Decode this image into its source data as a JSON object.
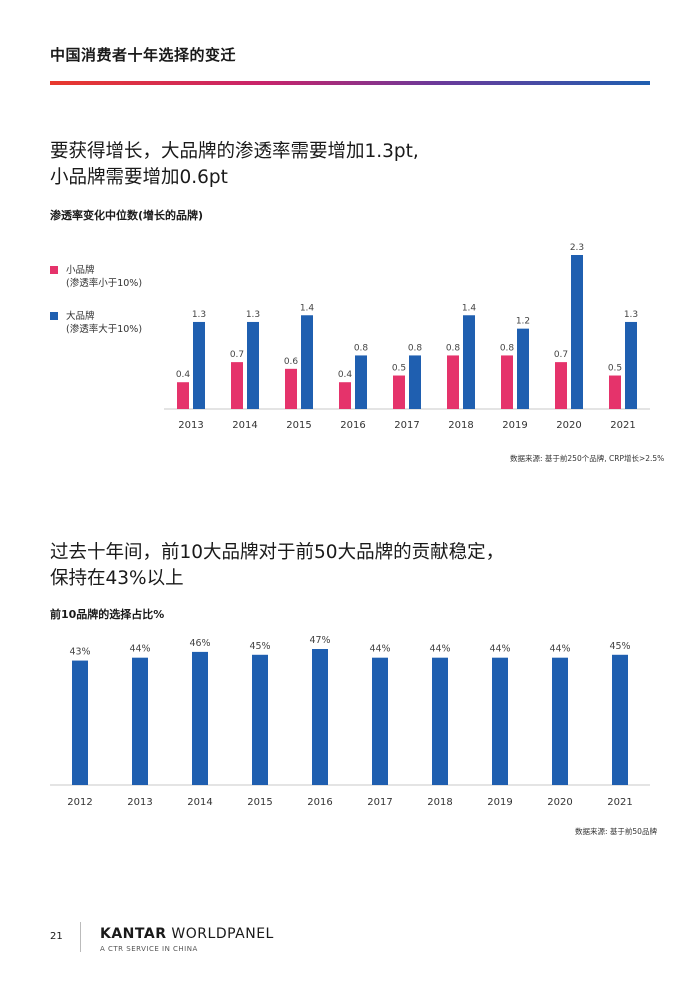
{
  "header": {
    "title": "中国消费者十年选择的变迁"
  },
  "section1": {
    "headline_line1": "要获得增长，大品牌的渗透率需要增加1.3pt,",
    "headline_line2": "小品牌需要增加0.6pt",
    "chart_title": "渗透率变化中位数(增长的品牌)",
    "legend": [
      {
        "label": "小品牌",
        "sub": "(渗透率小于10%)",
        "color": "#e5336b"
      },
      {
        "label": "大品牌",
        "sub": "(渗透率大于10%)",
        "color": "#1f5fb0"
      }
    ],
    "source": "数据来源: 基于前250个品牌, CRP增长>2.5%"
  },
  "section2": {
    "headline_line1": "过去十年间，前10大品牌对于前50大品牌的贡献稳定，",
    "headline_line2": "保持在43%以上",
    "chart_title": "前10品牌的选择占比%",
    "source": "数据来源: 基于前50品牌"
  },
  "footer": {
    "page_number": "21",
    "brand_bold": "KANTAR",
    "brand_light": " WORLDPANEL",
    "tagline": "A CTR SERVICE IN CHINA"
  },
  "chart_data": [
    {
      "type": "bar",
      "title": "渗透率变化中位数(增长的品牌)",
      "categories": [
        "2013",
        "2014",
        "2015",
        "2016",
        "2017",
        "2018",
        "2019",
        "2020",
        "2021"
      ],
      "series": [
        {
          "name": "小品牌",
          "color": "#e5336b",
          "values": [
            0.4,
            0.7,
            0.6,
            0.4,
            0.5,
            0.8,
            0.8,
            0.7,
            0.5
          ]
        },
        {
          "name": "大品牌",
          "color": "#1f5fb0",
          "values": [
            1.3,
            1.3,
            1.4,
            0.8,
            0.8,
            1.4,
            1.2,
            2.3,
            1.3
          ]
        }
      ],
      "ylim": [
        0,
        2.3
      ],
      "grid": false
    },
    {
      "type": "bar",
      "title": "前10品牌的选择占比%",
      "categories": [
        "2012",
        "2013",
        "2014",
        "2015",
        "2016",
        "2017",
        "2018",
        "2019",
        "2020",
        "2021"
      ],
      "series": [
        {
          "color": "#1f5fb0",
          "values": [
            43,
            44,
            46,
            45,
            47,
            44,
            44,
            44,
            44,
            45
          ],
          "label_suffix": "%"
        }
      ],
      "ylim": [
        0,
        47
      ],
      "grid": false
    }
  ]
}
